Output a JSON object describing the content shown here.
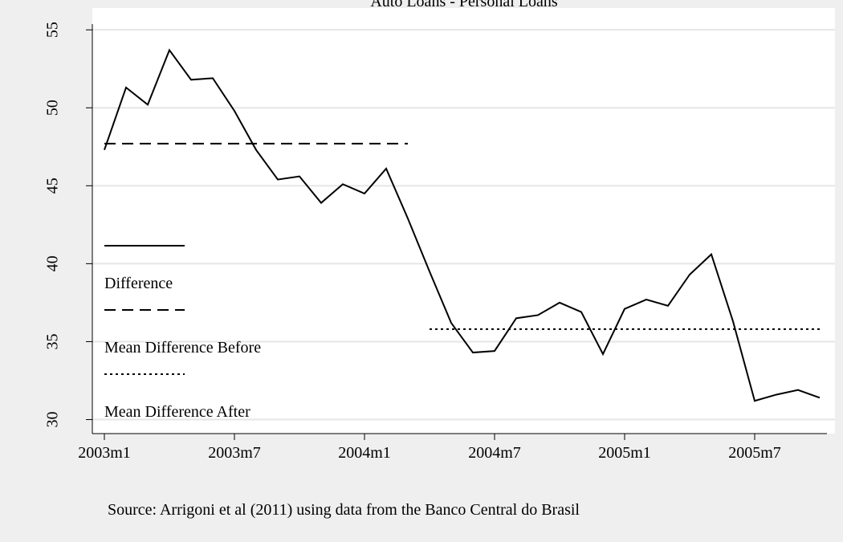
{
  "chart_data": {
    "type": "line",
    "title": "Auto Loans - Personal Loans",
    "note": "Source: Arrigoni et al (2011) using data from the Banco Central do Brasil",
    "categories": [
      "2003m1",
      null,
      null,
      null,
      null,
      null,
      "2003m7",
      null,
      null,
      null,
      null,
      null,
      "2004m1",
      null,
      null,
      null,
      null,
      null,
      "2004m7",
      null,
      null,
      null,
      null,
      null,
      "2005m1",
      null,
      null,
      null,
      null,
      null,
      "2005m7",
      null,
      null,
      null
    ],
    "series": [
      {
        "name": "Difference",
        "color": "#000000",
        "dash": "solid",
        "values": [
          47.3,
          51.3,
          50.2,
          53.7,
          51.8,
          51.9,
          49.8,
          47.3,
          45.4,
          45.6,
          43.9,
          45.1,
          44.5,
          46.1,
          42.9,
          39.5,
          36.2,
          34.3,
          34.4,
          36.5,
          36.7,
          37.5,
          36.9,
          34.2,
          37.1,
          37.7,
          37.3,
          39.3,
          40.6,
          36.3,
          31.2,
          31.6,
          31.9,
          31.4
        ]
      },
      {
        "name": "Mean Difference Before",
        "color": "#000000",
        "dash": "dashed",
        "values": [
          47.7,
          47.7,
          47.7,
          47.7,
          47.7,
          47.7,
          47.7,
          47.7,
          47.7,
          47.7,
          47.7,
          47.7,
          47.7,
          47.7,
          47.7,
          null,
          null,
          null,
          null,
          null,
          null,
          null,
          null,
          null,
          null,
          null,
          null,
          null,
          null,
          null,
          null,
          null,
          null,
          null
        ]
      },
      {
        "name": "Mean Difference After",
        "color": "#000000",
        "dash": "dotted",
        "values": [
          null,
          null,
          null,
          null,
          null,
          null,
          null,
          null,
          null,
          null,
          null,
          null,
          null,
          null,
          null,
          35.8,
          35.8,
          35.8,
          35.8,
          35.8,
          35.8,
          35.8,
          35.8,
          35.8,
          35.8,
          35.8,
          35.8,
          35.8,
          35.8,
          35.8,
          35.8,
          35.8,
          35.8,
          35.8
        ]
      }
    ],
    "ylim": [
      29.1,
      56.4
    ],
    "yticks": [
      30,
      35,
      40,
      45,
      50,
      55
    ],
    "grid": true,
    "legend": "left"
  }
}
